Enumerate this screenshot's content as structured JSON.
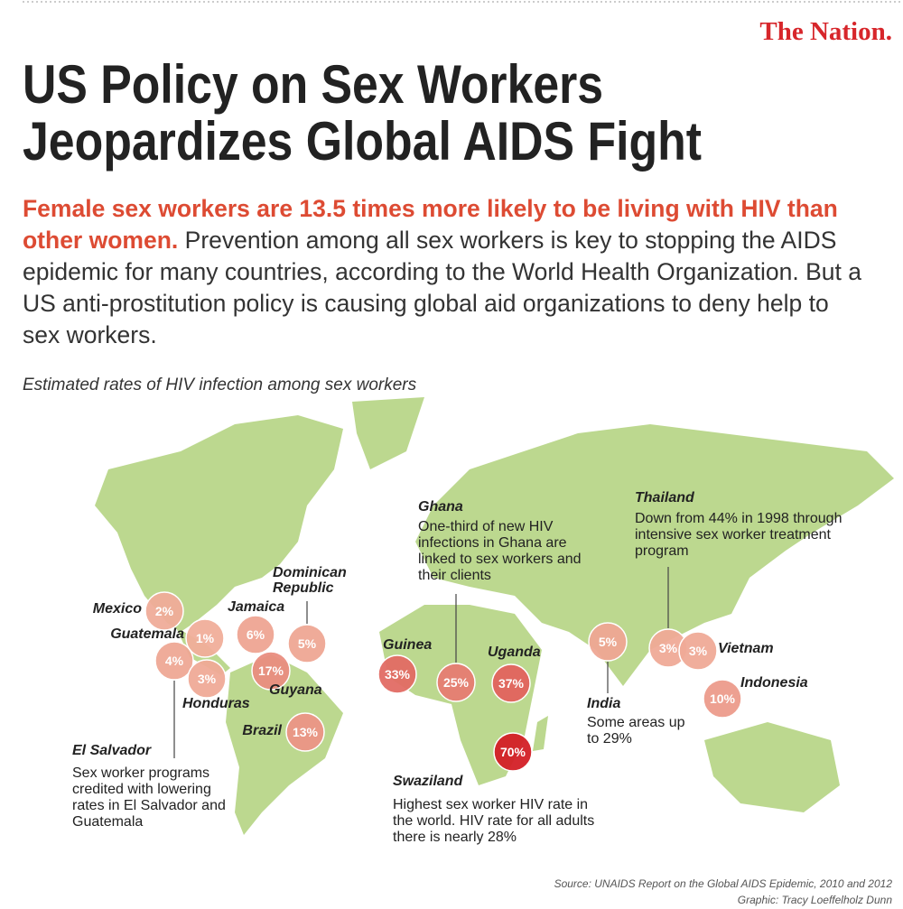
{
  "brand": "The Nation.",
  "title": [
    "US Policy on Sex Workers",
    "Jeopardizes Global AIDS Fight"
  ],
  "subtitle": {
    "highlight": "Female sex workers are 13.5 times more likely to be living with HIV than other women.",
    "text": "Prevention among all sex workers is key to stopping the AIDS epidemic for many countries, according to the World Health Organization. But a US anti-prostitution policy is causing global aid organizations to deny help to sex workers."
  },
  "map": {
    "caption": "Estimated rates of HIV infection among sex workers",
    "points": [
      {
        "name": "Mexico",
        "value": 2,
        "label": "2%"
      },
      {
        "name": "Guatemala",
        "value": 1,
        "label": "1%"
      },
      {
        "name": "El Salvador",
        "value": 4,
        "label": "4%",
        "note": "Sex worker programs credited with lowering rates in El Salvador and Guatemala"
      },
      {
        "name": "Honduras",
        "value": 3,
        "label": "3%"
      },
      {
        "name": "Jamaica",
        "value": 6,
        "label": "6%"
      },
      {
        "name": "Dominican Republic",
        "value": 5,
        "label": "5%"
      },
      {
        "name": "Guyana",
        "value": 17,
        "label": "17%"
      },
      {
        "name": "Brazil",
        "value": 13,
        "label": "13%"
      },
      {
        "name": "Guinea",
        "value": 33,
        "label": "33%"
      },
      {
        "name": "Ghana",
        "value": 25,
        "label": "25%",
        "note": "One-third of new HIV infections in Ghana are linked to sex workers and their clients"
      },
      {
        "name": "Uganda",
        "value": 37,
        "label": "37%"
      },
      {
        "name": "Swaziland",
        "value": 70,
        "label": "70%",
        "note": "Highest sex worker HIV rate in the world. HIV rate for all adults there is nearly 28%"
      },
      {
        "name": "India",
        "value": 5,
        "label": "5%",
        "note": "Some areas up to 29%"
      },
      {
        "name": "Thailand",
        "value": 3,
        "label": "3%",
        "note": "Down from 44% in 1998 through intensive sex worker treatment program"
      },
      {
        "name": "Vietnam",
        "value": 3,
        "label": "3%"
      },
      {
        "name": "Indonesia",
        "value": 10,
        "label": "10%"
      }
    ]
  },
  "source": [
    "Source: UNAIDS Report on the Global AIDS Epidemic, 2010 and 2012",
    "Graphic: Tracy Loeffelholz Dunn"
  ]
}
